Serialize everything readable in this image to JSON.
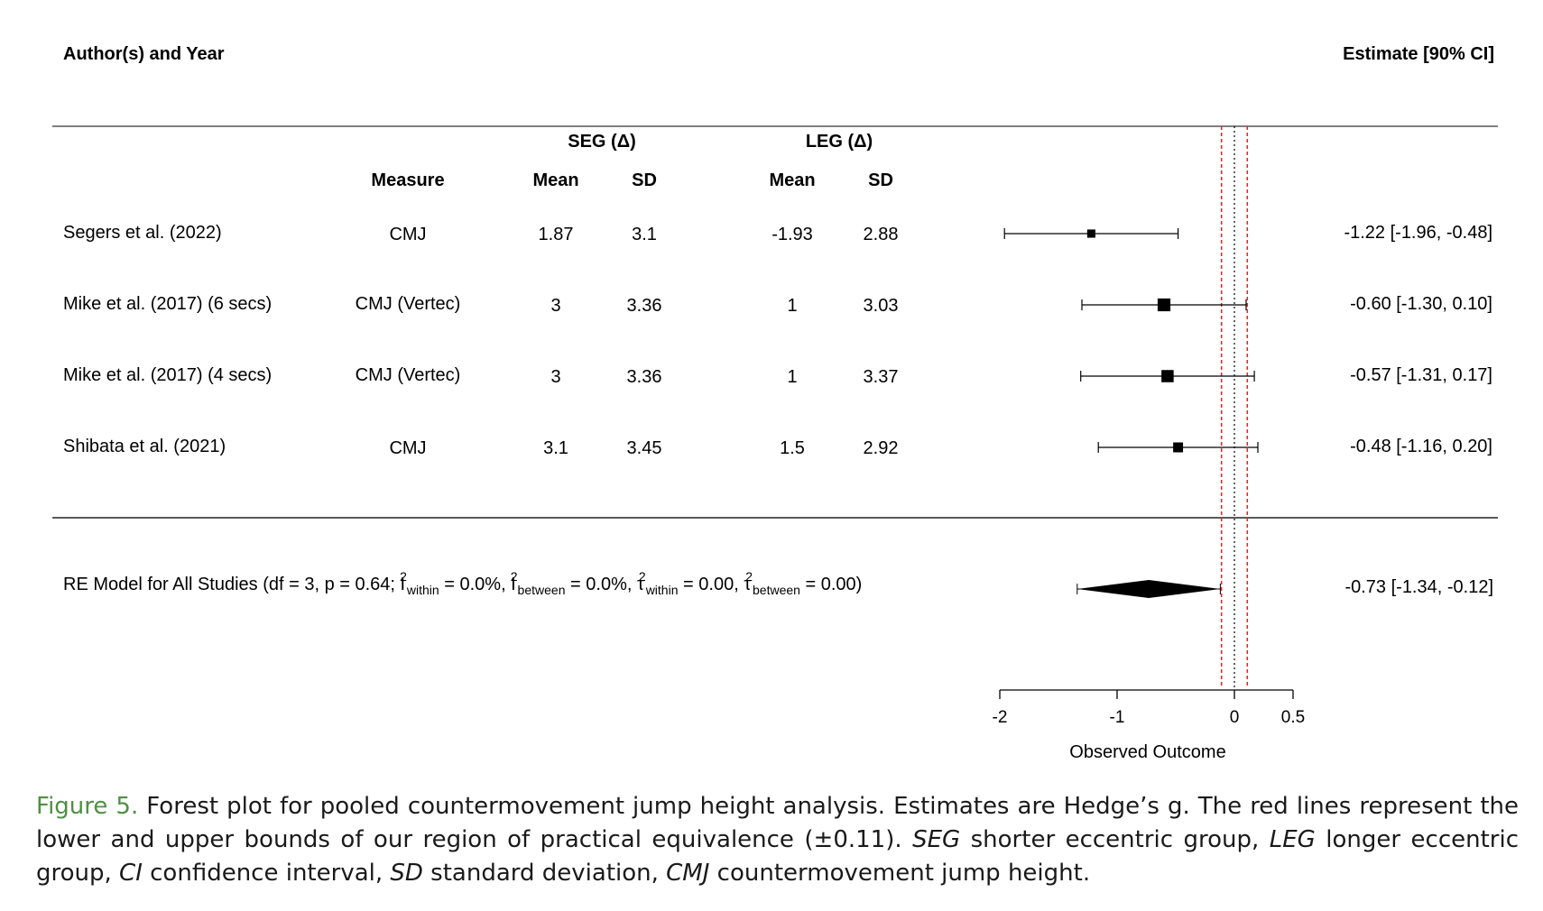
{
  "headers": {
    "author": "Author(s) and Year",
    "estimate": "Estimate [90% CI]",
    "seg": "SEG (Δ)",
    "leg": "LEG (Δ)",
    "measure": "Measure",
    "seg_mean": "Mean",
    "seg_sd": "SD",
    "leg_mean": "Mean",
    "leg_sd": "SD"
  },
  "studies": [
    {
      "author": "Segers et al. (2022)",
      "measure": "CMJ",
      "seg_mean": "1.87",
      "seg_sd": "3.1",
      "leg_mean": "-1.93",
      "leg_sd": "2.88",
      "ci_text": "-1.22 [-1.96, -0.48]"
    },
    {
      "author": "Mike et al. (2017) (6 secs)",
      "measure": "CMJ (Vertec)",
      "seg_mean": "3",
      "seg_sd": "3.36",
      "leg_mean": "1",
      "leg_sd": "3.03",
      "ci_text": "-0.60 [-1.30,  0.10]"
    },
    {
      "author": "Mike et al. (2017) (4 secs)",
      "measure": "CMJ (Vertec)",
      "seg_mean": "3",
      "seg_sd": "3.36",
      "leg_mean": "1",
      "leg_sd": "3.37",
      "ci_text": "-0.57 [-1.31,  0.17]"
    },
    {
      "author": "Shibata et al. (2021)",
      "measure": "CMJ",
      "seg_mean": "3.1",
      "seg_sd": "3.45",
      "leg_mean": "1.5",
      "leg_sd": "2.92",
      "ci_text": "-0.48 [-1.16,  0.20]"
    }
  ],
  "model": {
    "label_prefix": "RE Model for All Studies (df = 3, p = 0.64; I",
    "sub_within": "within",
    "sub_between": "between",
    "sup_2": "2",
    "mid1": " = 0.0%, I",
    "mid2": " = 0.0%, τ",
    "mid3": " = 0.00, τ",
    "suffix": " = 0.00)",
    "ci_text": "-0.73 [-1.34, -0.12]"
  },
  "chart_data": {
    "type": "forest",
    "xlabel": "Observed Outcome",
    "xlim": [
      -2,
      0.5
    ],
    "xticks": [
      -2,
      -1,
      0,
      0.5
    ],
    "xtick_labels": [
      "-2",
      "-1",
      "0",
      "0.5"
    ],
    "reference_line": 0,
    "equivalence_bounds": [
      -0.11,
      0.11
    ],
    "series": [
      {
        "estimate": -1.22,
        "lower": -1.96,
        "upper": -0.48,
        "weight": 0.08
      },
      {
        "estimate": -0.6,
        "lower": -1.3,
        "upper": 0.1,
        "weight": 0.32
      },
      {
        "estimate": -0.57,
        "lower": -1.31,
        "upper": 0.17,
        "weight": 0.28
      },
      {
        "estimate": -0.48,
        "lower": -1.16,
        "upper": 0.2,
        "weight": 0.15
      }
    ],
    "pooled": {
      "estimate": -0.73,
      "lower": -1.34,
      "upper": -0.12,
      "pi_lower": -1.34,
      "pi_upper": -0.12
    }
  },
  "colors": {
    "equivalence": "#e8231c",
    "reference": "#000000",
    "caption_label": "#4f8f43"
  },
  "caption": {
    "label": "Figure 5.",
    "t1": " Forest plot for pooled countermovement jump height analysis. Estimates are Hedge’s g. The red lines represent the lower and upper bounds of our region of practical equivalence (±0.11). ",
    "seg": "SEG",
    "t2": " shorter eccentric group, ",
    "leg": "LEG",
    "t3": " longer eccentric group, ",
    "ci": "CI",
    "t4": " confidence interval, ",
    "sd": "SD",
    "t5": " standard deviation, ",
    "cmj": "CMJ",
    "t6": " countermovement jump height."
  }
}
